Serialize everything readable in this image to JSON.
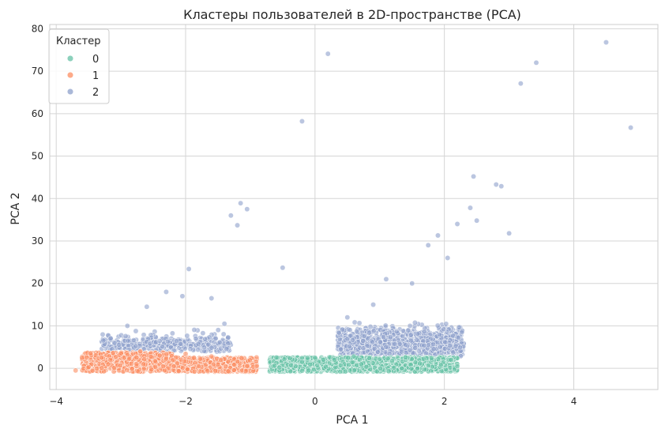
{
  "chart_data": {
    "type": "scatter",
    "title": "Кластеры пользователей в 2D-пространстве (PCA)",
    "xlabel": "PCA 1",
    "ylabel": "PCA 2",
    "xlim": [
      -4.1,
      5.3
    ],
    "ylim": [
      -5,
      81
    ],
    "xticks": [
      -4,
      -2,
      0,
      2,
      4
    ],
    "yticks": [
      0,
      10,
      20,
      30,
      40,
      50,
      60,
      70,
      80
    ],
    "xtick_labels": [
      "−4",
      "−2",
      "0",
      "2",
      "4"
    ],
    "ytick_labels": [
      "0",
      "10",
      "20",
      "30",
      "40",
      "50",
      "60",
      "70",
      "80"
    ],
    "grid": true,
    "legend": {
      "title": "Кластер",
      "placement": "top-left"
    },
    "series": [
      {
        "name": "0",
        "color": "#66c2a5",
        "description_of_bulk": "dense band x -0.7..2.2, y -1..3",
        "points": [
          [
            -0.55,
            0.2
          ],
          [
            -0.3,
            0.5
          ],
          [
            -0.2,
            1.5
          ],
          [
            0.0,
            2.5
          ],
          [
            0.3,
            2.0
          ],
          [
            0.6,
            2.8
          ],
          [
            1.0,
            2.2
          ],
          [
            1.4,
            2.6
          ],
          [
            1.8,
            2.4
          ],
          [
            2.1,
            2.0
          ],
          [
            2.2,
            0.5
          ],
          [
            -0.1,
            -0.5
          ]
        ]
      },
      {
        "name": "1",
        "color": "#fc8d62",
        "description_of_bulk": "dense band x -3.7..-0.9, y -1..4",
        "points": [
          [
            -3.7,
            -0.5
          ],
          [
            -3.5,
            0.3
          ],
          [
            -3.3,
            2.5
          ],
          [
            -3.0,
            3.5
          ],
          [
            -2.7,
            4.0
          ],
          [
            -2.4,
            3.0
          ],
          [
            -2.0,
            3.4
          ],
          [
            -1.6,
            2.8
          ],
          [
            -1.2,
            1.6
          ],
          [
            -0.9,
            0.5
          ]
        ]
      },
      {
        "name": "2",
        "color": "#8da0cb",
        "description_of_bulk": "cloud x -3.3..-1.2 y 4..18 and x 0.3..2.5 y 3..25",
        "points": [
          [
            -3.1,
            6.0
          ],
          [
            -2.9,
            10.0
          ],
          [
            -2.6,
            14.5
          ],
          [
            -2.3,
            18.0
          ],
          [
            -2.05,
            17.0
          ],
          [
            -1.95,
            23.4
          ],
          [
            -1.6,
            16.5
          ],
          [
            -1.4,
            10.5
          ],
          [
            -1.3,
            36.0
          ],
          [
            -1.2,
            33.7
          ],
          [
            -1.15,
            38.9
          ],
          [
            -1.05,
            37.5
          ],
          [
            -0.5,
            23.7
          ],
          [
            -0.2,
            58.2
          ],
          [
            0.2,
            74.1
          ],
          [
            0.5,
            12.0
          ],
          [
            0.9,
            15.0
          ],
          [
            1.1,
            21.0
          ],
          [
            1.5,
            20.0
          ],
          [
            1.75,
            29.0
          ],
          [
            1.9,
            31.3
          ],
          [
            2.05,
            26.0
          ],
          [
            2.2,
            34.0
          ],
          [
            2.4,
            37.8
          ],
          [
            2.45,
            45.2
          ],
          [
            2.5,
            34.8
          ],
          [
            2.8,
            43.3
          ],
          [
            2.88,
            42.9
          ],
          [
            3.0,
            31.8
          ],
          [
            3.18,
            67.1
          ],
          [
            3.42,
            72.0
          ],
          [
            4.5,
            76.8
          ],
          [
            4.88,
            56.7
          ]
        ]
      }
    ]
  }
}
